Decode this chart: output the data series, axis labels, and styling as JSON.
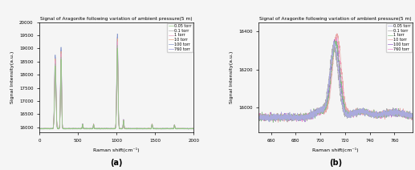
{
  "title": "Signal of Aragonite following variation of ambient pressure(5 m)",
  "xlabel": "Raman shift(cm⁻¹)",
  "ylabel": "Signal Intensity(a.u.)",
  "label_a": "(a)",
  "label_b": "(b)",
  "legend_labels": [
    "0.05 torr",
    "0.1 torr",
    "1 torr",
    "10 torr",
    "100 torr",
    "760 torr"
  ],
  "colors_a": [
    "#90c97f",
    "#b0b0b0",
    "#e8a0c0",
    "#e8a888",
    "#8899cc",
    "#9999dd"
  ],
  "colors_b": [
    "#aaaadd",
    "#aaaaaa",
    "#88bb88",
    "#e8a8a8",
    "#9966cc",
    "#ee88cc"
  ],
  "xlim_a": [
    0,
    2000
  ],
  "ylim_a": [
    15800,
    20000
  ],
  "yticks_a": [
    16000,
    16500,
    17000,
    17500,
    18000,
    18500,
    19000,
    19500,
    20000
  ],
  "xlim_b": [
    650,
    775
  ],
  "ylim_b": [
    15870,
    16450
  ],
  "yticks_b": [
    16000,
    16200,
    16400
  ],
  "background": "#f5f5f5",
  "base_a": 15950,
  "noise_a": 5,
  "noise_b": 8
}
